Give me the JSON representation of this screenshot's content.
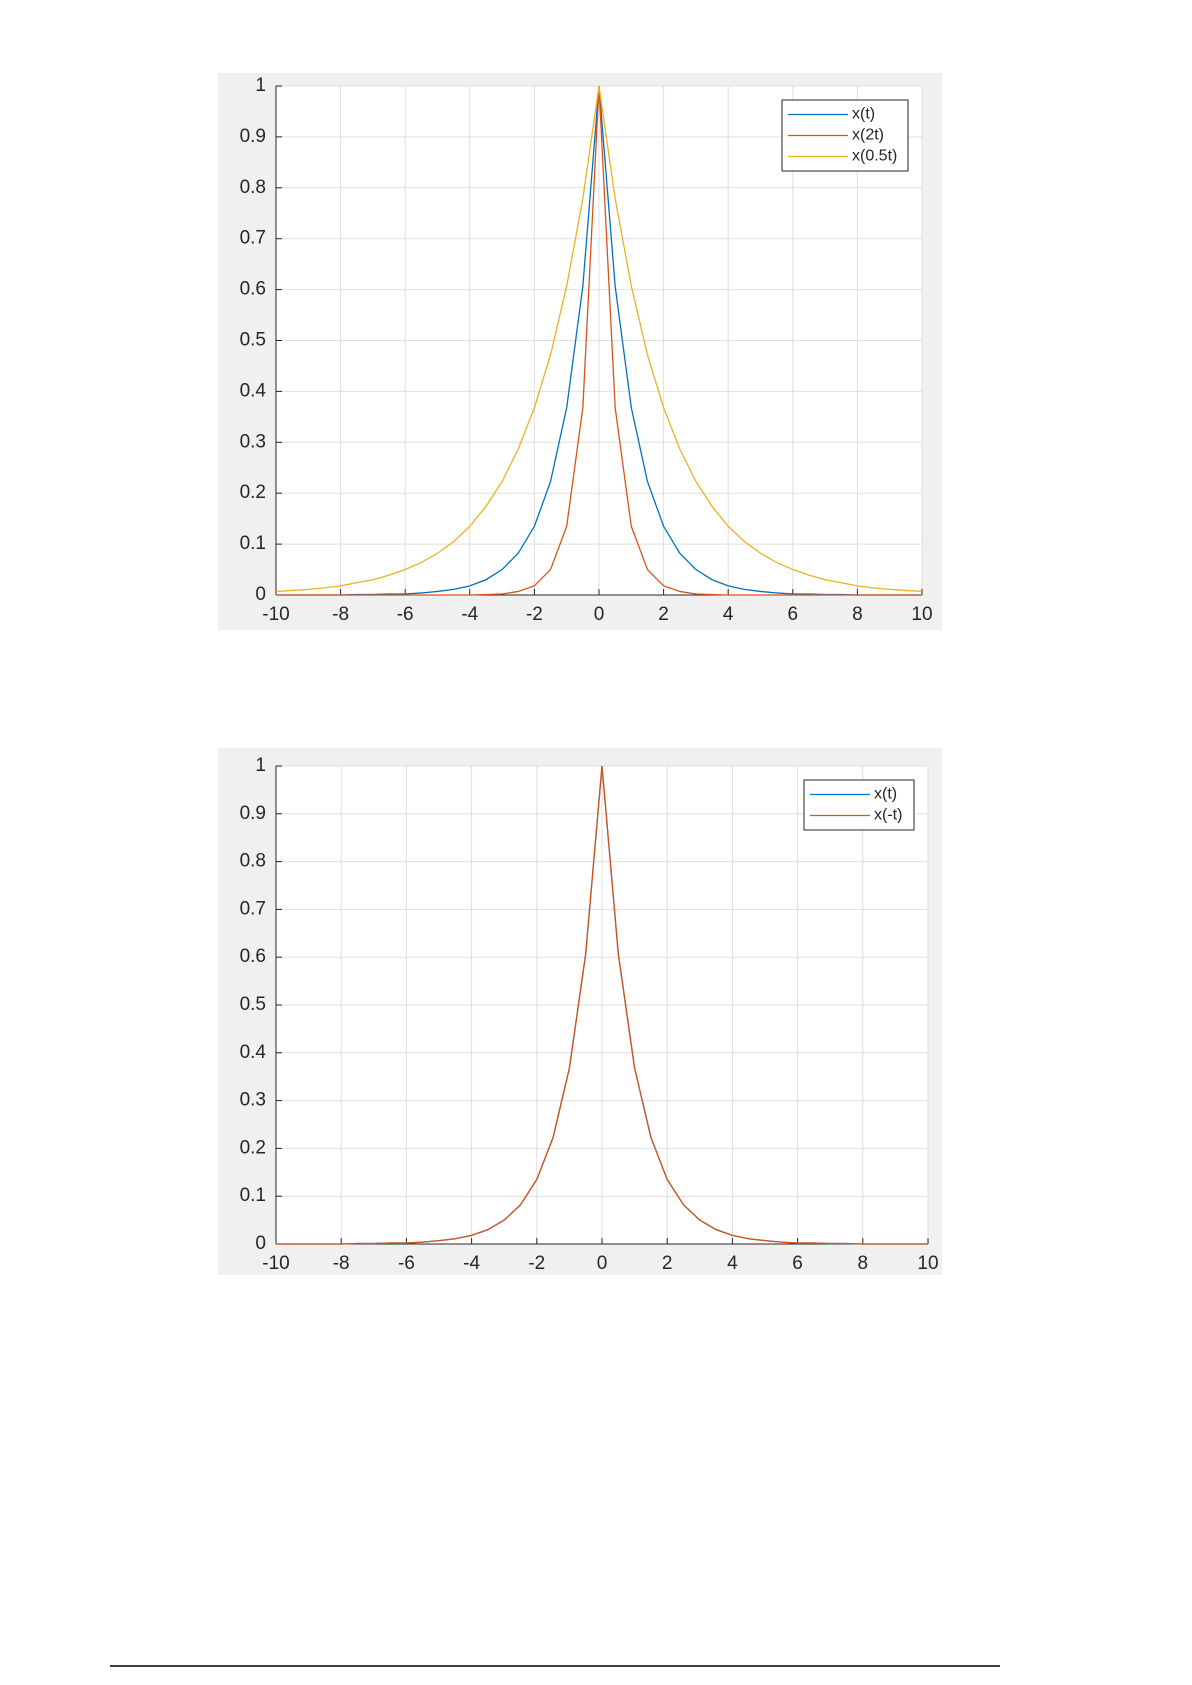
{
  "chart_data": [
    {
      "type": "line",
      "x": [
        -10,
        -9.5,
        -9,
        -8.5,
        -8,
        -7.5,
        -7,
        -6.5,
        -6,
        -5.5,
        -5,
        -4.5,
        -4,
        -3.5,
        -3,
        -2.5,
        -2,
        -1.5,
        -1,
        -0.5,
        0,
        0.5,
        1,
        1.5,
        2,
        2.5,
        3,
        3.5,
        4,
        4.5,
        5,
        5.5,
        6,
        6.5,
        7,
        7.5,
        8,
        8.5,
        9,
        9.5,
        10
      ],
      "series": [
        {
          "name": "x(t)",
          "color": "#0072BD",
          "values": [
            0,
            0,
            0,
            0,
            0,
            0.001,
            0.001,
            0.002,
            0.002,
            0.004,
            0.007,
            0.011,
            0.018,
            0.03,
            0.05,
            0.082,
            0.135,
            0.223,
            0.368,
            0.607,
            1,
            0.607,
            0.368,
            0.223,
            0.135,
            0.082,
            0.05,
            0.03,
            0.018,
            0.011,
            0.007,
            0.004,
            0.002,
            0.002,
            0.001,
            0.001,
            0,
            0,
            0,
            0,
            0
          ]
        },
        {
          "name": "x(2t)",
          "color": "#D95319",
          "values": [
            0,
            0,
            0,
            0,
            0,
            0,
            0,
            0,
            0,
            0,
            0,
            0,
            0,
            0.001,
            0.002,
            0.007,
            0.018,
            0.05,
            0.135,
            0.368,
            1,
            0.368,
            0.135,
            0.05,
            0.018,
            0.007,
            0.002,
            0.001,
            0,
            0,
            0,
            0,
            0,
            0,
            0,
            0,
            0,
            0,
            0,
            0,
            0
          ]
        },
        {
          "name": "x(0.5t)",
          "color": "#EDB120",
          "values": [
            0.007,
            0.009,
            0.011,
            0.014,
            0.018,
            0.024,
            0.03,
            0.039,
            0.05,
            0.064,
            0.082,
            0.105,
            0.135,
            0.174,
            0.223,
            0.287,
            0.368,
            0.472,
            0.607,
            0.779,
            1,
            0.779,
            0.607,
            0.472,
            0.368,
            0.287,
            0.223,
            0.174,
            0.135,
            0.105,
            0.082,
            0.064,
            0.05,
            0.039,
            0.03,
            0.024,
            0.018,
            0.014,
            0.011,
            0.009,
            0.007
          ]
        }
      ],
      "xlim": [
        -10,
        10
      ],
      "xticks": [
        -10,
        -8,
        -6,
        -4,
        -2,
        0,
        2,
        4,
        6,
        8,
        10
      ],
      "ylim": [
        0,
        1
      ],
      "yticks": [
        0,
        0.1,
        0.2,
        0.3,
        0.4,
        0.5,
        0.6,
        0.7,
        0.8,
        0.9,
        1
      ],
      "grid": true,
      "legend": "upper right"
    },
    {
      "type": "line",
      "x": [
        -10,
        -9.5,
        -9,
        -8.5,
        -8,
        -7.5,
        -7,
        -6.5,
        -6,
        -5.5,
        -5,
        -4.5,
        -4,
        -3.5,
        -3,
        -2.5,
        -2,
        -1.5,
        -1,
        -0.5,
        0,
        0.5,
        1,
        1.5,
        2,
        2.5,
        3,
        3.5,
        4,
        4.5,
        5,
        5.5,
        6,
        6.5,
        7,
        7.5,
        8,
        8.5,
        9,
        9.5,
        10
      ],
      "series": [
        {
          "name": "x(t)",
          "color": "#0072BD",
          "values": [
            0,
            0,
            0,
            0,
            0,
            0.001,
            0.001,
            0.002,
            0.002,
            0.004,
            0.007,
            0.011,
            0.018,
            0.03,
            0.05,
            0.082,
            0.135,
            0.223,
            0.368,
            0.607,
            1,
            0.607,
            0.368,
            0.223,
            0.135,
            0.082,
            0.05,
            0.03,
            0.018,
            0.011,
            0.007,
            0.004,
            0.002,
            0.002,
            0.001,
            0.001,
            0,
            0,
            0,
            0,
            0
          ]
        },
        {
          "name": "x(-t)",
          "color": "#D95319",
          "values": [
            0,
            0,
            0,
            0,
            0,
            0.001,
            0.001,
            0.002,
            0.002,
            0.004,
            0.007,
            0.011,
            0.018,
            0.03,
            0.05,
            0.082,
            0.135,
            0.223,
            0.368,
            0.607,
            1,
            0.607,
            0.368,
            0.223,
            0.135,
            0.082,
            0.05,
            0.03,
            0.018,
            0.011,
            0.007,
            0.004,
            0.002,
            0.002,
            0.001,
            0.001,
            0,
            0,
            0,
            0,
            0
          ]
        }
      ],
      "xlim": [
        -10,
        10
      ],
      "xticks": [
        -10,
        -8,
        -6,
        -4,
        -2,
        0,
        2,
        4,
        6,
        8,
        10
      ],
      "ylim": [
        0,
        1
      ],
      "yticks": [
        0,
        0.1,
        0.2,
        0.3,
        0.4,
        0.5,
        0.6,
        0.7,
        0.8,
        0.9,
        1
      ],
      "grid": true,
      "legend": "upper right"
    }
  ]
}
